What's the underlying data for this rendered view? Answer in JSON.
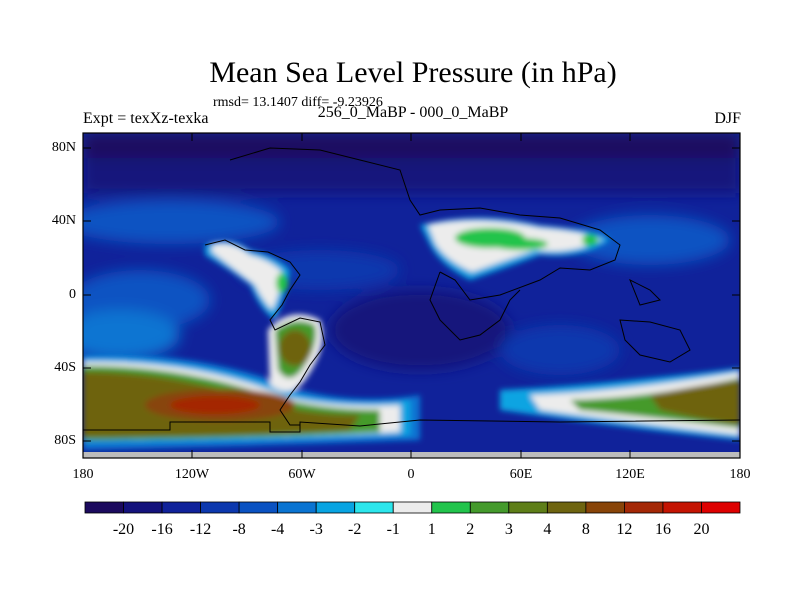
{
  "title": "Mean Sea Level Pressure (in hPa)",
  "stats": "rmsd= 13.1407 diff= -9.23926",
  "subtitle": "256_0_MaBP - 000_0_MaBP",
  "experiment": "Expt = texXz-texka",
  "season": "DJF",
  "lat_ticks": [
    "80N",
    "40N",
    "0",
    "40S",
    "80S"
  ],
  "lon_ticks": [
    "180",
    "120W",
    "60W",
    "0",
    "60E",
    "120E",
    "180"
  ],
  "colorbar": {
    "labels": [
      "-20",
      "-16",
      "-12",
      "-8",
      "-4",
      "-3",
      "-2",
      "-1",
      "1",
      "2",
      "3",
      "4",
      "8",
      "12",
      "16",
      "20"
    ],
    "colors": [
      "#1c0a5e",
      "#14127c",
      "#10229a",
      "#0c38ae",
      "#0a52c2",
      "#0a74d2",
      "#08a4e2",
      "#2ce6ec",
      "#ececec",
      "#22c44c",
      "#449a2c",
      "#5e7e18",
      "#6e6410",
      "#884408",
      "#a42806",
      "#c41402",
      "#de0000"
    ]
  }
}
